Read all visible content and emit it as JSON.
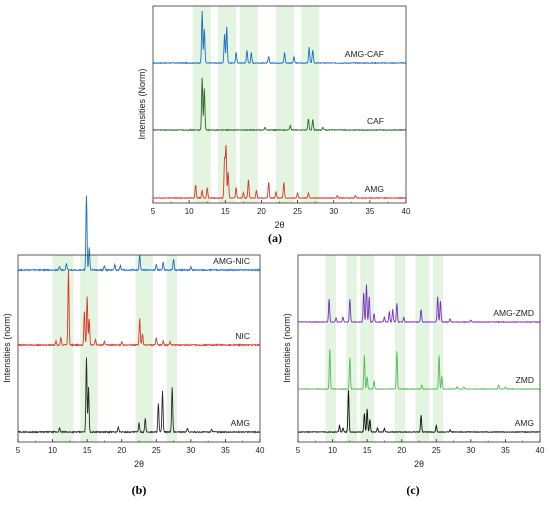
{
  "chart_data": [
    {
      "panel_label": "(a)",
      "type": "line",
      "xlabel": "2θ",
      "ylabel": "Intensities (Norm)",
      "xlim": [
        5,
        40
      ],
      "xticks": [
        5,
        10,
        15,
        20,
        25,
        30,
        35,
        40
      ],
      "highlight_bands": [
        [
          10.5,
          13
        ],
        [
          14,
          16.5
        ],
        [
          17,
          19.5
        ],
        [
          22,
          24.5
        ],
        [
          25.5,
          28
        ]
      ],
      "series": [
        {
          "name": "AMG-CAF",
          "color": "#1f6fc4",
          "peaks": [
            [
              11.8,
              1.0
            ],
            [
              12.1,
              0.65
            ],
            [
              14.9,
              0.55
            ],
            [
              15.2,
              0.7
            ],
            [
              16.5,
              0.2
            ],
            [
              18.0,
              0.25
            ],
            [
              18.6,
              0.2
            ],
            [
              21.0,
              0.12
            ],
            [
              23.2,
              0.2
            ],
            [
              24.5,
              0.12
            ],
            [
              26.6,
              0.3
            ],
            [
              27.1,
              0.25
            ]
          ]
        },
        {
          "name": "CAF",
          "color": "#2d6a2d",
          "peaks": [
            [
              11.8,
              1.0
            ],
            [
              12.1,
              0.8
            ],
            [
              20.5,
              0.05
            ],
            [
              24.0,
              0.08
            ],
            [
              26.5,
              0.22
            ],
            [
              27.1,
              0.2
            ],
            [
              28.5,
              0.05
            ]
          ]
        },
        {
          "name": "AMG",
          "color": "#d63a2a",
          "peaks": [
            [
              10.9,
              0.25
            ],
            [
              11.8,
              0.15
            ],
            [
              12.5,
              0.2
            ],
            [
              14.9,
              0.75
            ],
            [
              15.1,
              1.0
            ],
            [
              15.4,
              0.5
            ],
            [
              16.5,
              0.2
            ],
            [
              17.5,
              0.1
            ],
            [
              18.2,
              0.35
            ],
            [
              19.3,
              0.15
            ],
            [
              21.0,
              0.3
            ],
            [
              22.0,
              0.12
            ],
            [
              23.1,
              0.3
            ],
            [
              25.0,
              0.1
            ],
            [
              26.5,
              0.1
            ],
            [
              30.5,
              0.05
            ],
            [
              33.0,
              0.05
            ]
          ]
        }
      ]
    },
    {
      "panel_label": "(b)",
      "type": "line",
      "xlabel": "2θ",
      "ylabel": "Intensities (norm)",
      "xlim": [
        5,
        40
      ],
      "xticks": [
        5,
        10,
        15,
        20,
        25,
        30,
        35,
        40
      ],
      "highlight_bands": [
        [
          10,
          13
        ],
        [
          14,
          16.5
        ],
        [
          22,
          24.5
        ],
        [
          26.5,
          28
        ]
      ],
      "series": [
        {
          "name": "AMG-NIC",
          "color": "#1f6fc4",
          "peaks": [
            [
              11.0,
              0.05
            ],
            [
              12.0,
              0.08
            ],
            [
              14.9,
              1.0
            ],
            [
              15.3,
              0.3
            ],
            [
              17.5,
              0.06
            ],
            [
              19.0,
              0.07
            ],
            [
              19.8,
              0.06
            ],
            [
              22.6,
              0.2
            ],
            [
              25.0,
              0.07
            ],
            [
              26.0,
              0.1
            ],
            [
              27.5,
              0.15
            ],
            [
              30.0,
              0.04
            ]
          ]
        },
        {
          "name": "NIC",
          "color": "#d63a2a",
          "peaks": [
            [
              10.5,
              0.05
            ],
            [
              11.2,
              0.1
            ],
            [
              12.3,
              1.0
            ],
            [
              14.6,
              0.45
            ],
            [
              15.0,
              0.65
            ],
            [
              15.3,
              0.35
            ],
            [
              16.2,
              0.08
            ],
            [
              17.5,
              0.05
            ],
            [
              20.0,
              0.05
            ],
            [
              22.6,
              0.35
            ],
            [
              23.0,
              0.15
            ],
            [
              25.0,
              0.1
            ],
            [
              26.0,
              0.05
            ],
            [
              27.0,
              0.04
            ]
          ]
        },
        {
          "name": "AMG",
          "color": "#2b2b2b",
          "peaks": [
            [
              11.0,
              0.05
            ],
            [
              14.9,
              1.0
            ],
            [
              15.2,
              0.6
            ],
            [
              19.5,
              0.07
            ],
            [
              22.5,
              0.12
            ],
            [
              23.4,
              0.18
            ],
            [
              25.3,
              0.38
            ],
            [
              25.9,
              0.55
            ],
            [
              27.3,
              0.6
            ],
            [
              29.5,
              0.05
            ],
            [
              33.0,
              0.04
            ]
          ]
        }
      ]
    },
    {
      "panel_label": "(c)",
      "type": "line",
      "xlabel": "2θ",
      "ylabel": "Intensities (norm)",
      "xlim": [
        5,
        40
      ],
      "xticks": [
        5,
        10,
        15,
        20,
        25,
        30,
        35,
        40
      ],
      "highlight_bands": [
        [
          9,
          10.5
        ],
        [
          12,
          13.5
        ],
        [
          14,
          16
        ],
        [
          19,
          20.5
        ],
        [
          22,
          24
        ],
        [
          24.5,
          26
        ]
      ],
      "series": [
        {
          "name": "AMG-ZMD",
          "color": "#7b2fc4",
          "peaks": [
            [
              9.5,
              0.55
            ],
            [
              10.5,
              0.1
            ],
            [
              11.5,
              0.12
            ],
            [
              12.5,
              0.55
            ],
            [
              14.5,
              0.7
            ],
            [
              14.9,
              0.9
            ],
            [
              15.3,
              0.6
            ],
            [
              16.0,
              0.2
            ],
            [
              17.5,
              0.12
            ],
            [
              18.2,
              0.25
            ],
            [
              18.7,
              0.3
            ],
            [
              19.3,
              0.45
            ],
            [
              20.3,
              0.12
            ],
            [
              22.8,
              0.3
            ],
            [
              25.2,
              0.6
            ],
            [
              25.6,
              0.5
            ],
            [
              27.0,
              0.08
            ],
            [
              30.0,
              0.05
            ]
          ]
        },
        {
          "name": "ZMD",
          "color": "#5cb85c",
          "peaks": [
            [
              9.6,
              0.95
            ],
            [
              12.5,
              0.75
            ],
            [
              14.6,
              0.8
            ],
            [
              15.0,
              0.3
            ],
            [
              16.0,
              0.2
            ],
            [
              19.3,
              0.9
            ],
            [
              22.9,
              0.1
            ],
            [
              25.4,
              0.8
            ],
            [
              25.8,
              0.3
            ],
            [
              28.0,
              0.05
            ],
            [
              29.0,
              0.05
            ],
            [
              34.0,
              0.1
            ],
            [
              35.0,
              0.05
            ]
          ]
        },
        {
          "name": "AMG",
          "color": "#111111",
          "peaks": [
            [
              11.0,
              0.15
            ],
            [
              11.5,
              0.1
            ],
            [
              12.3,
              1.0
            ],
            [
              14.6,
              0.45
            ],
            [
              15.0,
              0.55
            ],
            [
              15.4,
              0.3
            ],
            [
              16.5,
              0.1
            ],
            [
              17.5,
              0.08
            ],
            [
              22.8,
              0.4
            ],
            [
              25.0,
              0.15
            ],
            [
              27.0,
              0.05
            ]
          ]
        }
      ]
    }
  ]
}
